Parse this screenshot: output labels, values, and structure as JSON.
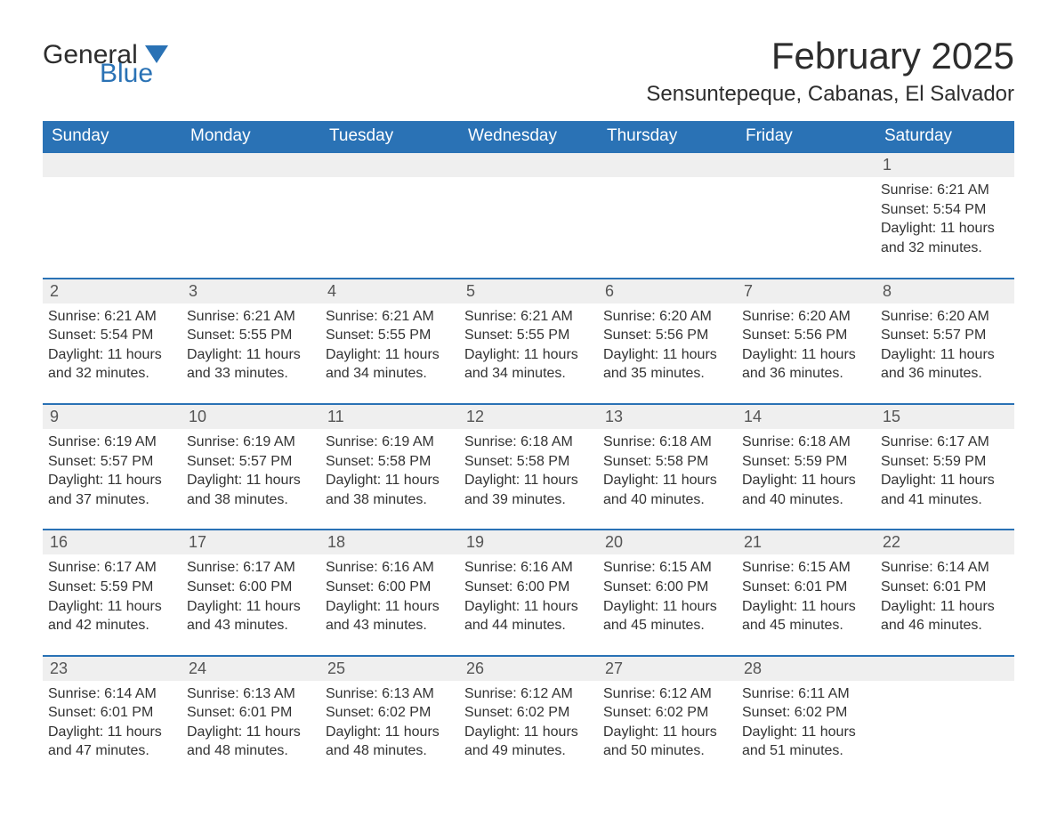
{
  "brand": {
    "name_part1": "General",
    "name_part2": "Blue"
  },
  "title": "February 2025",
  "location": "Sensuntepeque, Cabanas, El Salvador",
  "colors": {
    "header_bg": "#2a72b5",
    "header_text": "#ffffff",
    "row_border": "#2a72b5",
    "daynum_bg": "#efefef",
    "text": "#333333",
    "logo_blue": "#2a72b5",
    "page_bg": "#ffffff"
  },
  "typography": {
    "title_fontsize": 42,
    "location_fontsize": 24,
    "weekday_fontsize": 19,
    "daynum_fontsize": 18,
    "body_fontsize": 16,
    "font_family": "Segoe UI"
  },
  "weekdays": [
    "Sunday",
    "Monday",
    "Tuesday",
    "Wednesday",
    "Thursday",
    "Friday",
    "Saturday"
  ],
  "weeks": [
    [
      null,
      null,
      null,
      null,
      null,
      null,
      {
        "day": "1",
        "sunrise": "Sunrise: 6:21 AM",
        "sunset": "Sunset: 5:54 PM",
        "daylight1": "Daylight: 11 hours",
        "daylight2": "and 32 minutes."
      }
    ],
    [
      {
        "day": "2",
        "sunrise": "Sunrise: 6:21 AM",
        "sunset": "Sunset: 5:54 PM",
        "daylight1": "Daylight: 11 hours",
        "daylight2": "and 32 minutes."
      },
      {
        "day": "3",
        "sunrise": "Sunrise: 6:21 AM",
        "sunset": "Sunset: 5:55 PM",
        "daylight1": "Daylight: 11 hours",
        "daylight2": "and 33 minutes."
      },
      {
        "day": "4",
        "sunrise": "Sunrise: 6:21 AM",
        "sunset": "Sunset: 5:55 PM",
        "daylight1": "Daylight: 11 hours",
        "daylight2": "and 34 minutes."
      },
      {
        "day": "5",
        "sunrise": "Sunrise: 6:21 AM",
        "sunset": "Sunset: 5:55 PM",
        "daylight1": "Daylight: 11 hours",
        "daylight2": "and 34 minutes."
      },
      {
        "day": "6",
        "sunrise": "Sunrise: 6:20 AM",
        "sunset": "Sunset: 5:56 PM",
        "daylight1": "Daylight: 11 hours",
        "daylight2": "and 35 minutes."
      },
      {
        "day": "7",
        "sunrise": "Sunrise: 6:20 AM",
        "sunset": "Sunset: 5:56 PM",
        "daylight1": "Daylight: 11 hours",
        "daylight2": "and 36 minutes."
      },
      {
        "day": "8",
        "sunrise": "Sunrise: 6:20 AM",
        "sunset": "Sunset: 5:57 PM",
        "daylight1": "Daylight: 11 hours",
        "daylight2": "and 36 minutes."
      }
    ],
    [
      {
        "day": "9",
        "sunrise": "Sunrise: 6:19 AM",
        "sunset": "Sunset: 5:57 PM",
        "daylight1": "Daylight: 11 hours",
        "daylight2": "and 37 minutes."
      },
      {
        "day": "10",
        "sunrise": "Sunrise: 6:19 AM",
        "sunset": "Sunset: 5:57 PM",
        "daylight1": "Daylight: 11 hours",
        "daylight2": "and 38 minutes."
      },
      {
        "day": "11",
        "sunrise": "Sunrise: 6:19 AM",
        "sunset": "Sunset: 5:58 PM",
        "daylight1": "Daylight: 11 hours",
        "daylight2": "and 38 minutes."
      },
      {
        "day": "12",
        "sunrise": "Sunrise: 6:18 AM",
        "sunset": "Sunset: 5:58 PM",
        "daylight1": "Daylight: 11 hours",
        "daylight2": "and 39 minutes."
      },
      {
        "day": "13",
        "sunrise": "Sunrise: 6:18 AM",
        "sunset": "Sunset: 5:58 PM",
        "daylight1": "Daylight: 11 hours",
        "daylight2": "and 40 minutes."
      },
      {
        "day": "14",
        "sunrise": "Sunrise: 6:18 AM",
        "sunset": "Sunset: 5:59 PM",
        "daylight1": "Daylight: 11 hours",
        "daylight2": "and 40 minutes."
      },
      {
        "day": "15",
        "sunrise": "Sunrise: 6:17 AM",
        "sunset": "Sunset: 5:59 PM",
        "daylight1": "Daylight: 11 hours",
        "daylight2": "and 41 minutes."
      }
    ],
    [
      {
        "day": "16",
        "sunrise": "Sunrise: 6:17 AM",
        "sunset": "Sunset: 5:59 PM",
        "daylight1": "Daylight: 11 hours",
        "daylight2": "and 42 minutes."
      },
      {
        "day": "17",
        "sunrise": "Sunrise: 6:17 AM",
        "sunset": "Sunset: 6:00 PM",
        "daylight1": "Daylight: 11 hours",
        "daylight2": "and 43 minutes."
      },
      {
        "day": "18",
        "sunrise": "Sunrise: 6:16 AM",
        "sunset": "Sunset: 6:00 PM",
        "daylight1": "Daylight: 11 hours",
        "daylight2": "and 43 minutes."
      },
      {
        "day": "19",
        "sunrise": "Sunrise: 6:16 AM",
        "sunset": "Sunset: 6:00 PM",
        "daylight1": "Daylight: 11 hours",
        "daylight2": "and 44 minutes."
      },
      {
        "day": "20",
        "sunrise": "Sunrise: 6:15 AM",
        "sunset": "Sunset: 6:00 PM",
        "daylight1": "Daylight: 11 hours",
        "daylight2": "and 45 minutes."
      },
      {
        "day": "21",
        "sunrise": "Sunrise: 6:15 AM",
        "sunset": "Sunset: 6:01 PM",
        "daylight1": "Daylight: 11 hours",
        "daylight2": "and 45 minutes."
      },
      {
        "day": "22",
        "sunrise": "Sunrise: 6:14 AM",
        "sunset": "Sunset: 6:01 PM",
        "daylight1": "Daylight: 11 hours",
        "daylight2": "and 46 minutes."
      }
    ],
    [
      {
        "day": "23",
        "sunrise": "Sunrise: 6:14 AM",
        "sunset": "Sunset: 6:01 PM",
        "daylight1": "Daylight: 11 hours",
        "daylight2": "and 47 minutes."
      },
      {
        "day": "24",
        "sunrise": "Sunrise: 6:13 AM",
        "sunset": "Sunset: 6:01 PM",
        "daylight1": "Daylight: 11 hours",
        "daylight2": "and 48 minutes."
      },
      {
        "day": "25",
        "sunrise": "Sunrise: 6:13 AM",
        "sunset": "Sunset: 6:02 PM",
        "daylight1": "Daylight: 11 hours",
        "daylight2": "and 48 minutes."
      },
      {
        "day": "26",
        "sunrise": "Sunrise: 6:12 AM",
        "sunset": "Sunset: 6:02 PM",
        "daylight1": "Daylight: 11 hours",
        "daylight2": "and 49 minutes."
      },
      {
        "day": "27",
        "sunrise": "Sunrise: 6:12 AM",
        "sunset": "Sunset: 6:02 PM",
        "daylight1": "Daylight: 11 hours",
        "daylight2": "and 50 minutes."
      },
      {
        "day": "28",
        "sunrise": "Sunrise: 6:11 AM",
        "sunset": "Sunset: 6:02 PM",
        "daylight1": "Daylight: 11 hours",
        "daylight2": "and 51 minutes."
      },
      null
    ]
  ]
}
